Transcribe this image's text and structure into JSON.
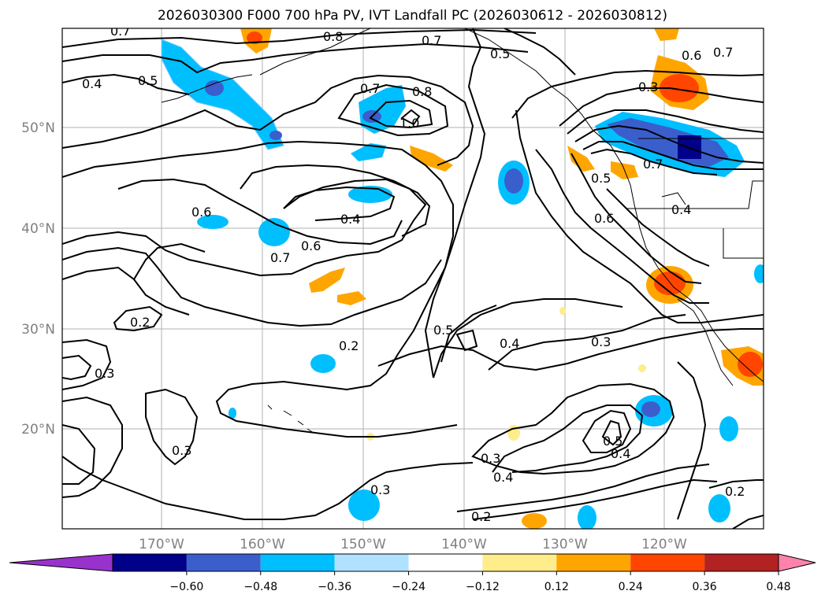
{
  "title": "2026030300 F000 700 hPa PV, IVT Landfall PC (2026030612 - 2026030812)",
  "lat_labels": [
    "50°N",
    "40°N",
    "30°N",
    "20°N"
  ],
  "lon_labels": [
    "170°W",
    "160°W",
    "150°W",
    "140°W",
    "130°W",
    "120°W"
  ],
  "colorbar": {
    "colors": [
      "#9932CC",
      "#00008B",
      "#3A5FCD",
      "#00BFFF",
      "#B0E2FF",
      "#FFFFFF",
      "#FFEC8B",
      "#FFA500",
      "#FF4500",
      "#B22222",
      "#FF82AB"
    ],
    "ticks": [
      "−0.60",
      "−0.48",
      "−0.36",
      "−0.24",
      "−0.12",
      "0.12",
      "0.24",
      "0.36",
      "0.48",
      "0.60"
    ]
  },
  "contour_labels": [
    {
      "text": "0.7",
      "name": "label-0-7-a"
    },
    {
      "text": "0.8",
      "name": "label-0-8-a"
    },
    {
      "text": "0.7",
      "name": "label-0-7-b"
    },
    {
      "text": "0.5",
      "name": "label-0-5-a"
    },
    {
      "text": "0.6",
      "name": "label-0-6-a"
    },
    {
      "text": "0.7",
      "name": "label-0-7-c"
    },
    {
      "text": "0.4",
      "name": "label-0-4-a"
    },
    {
      "text": "0.5",
      "name": "label-0-5-b"
    },
    {
      "text": "0.7",
      "name": "label-0-7-d"
    },
    {
      "text": "0.8",
      "name": "label-0-8-b"
    },
    {
      "text": "1.0",
      "name": "label-1-0"
    },
    {
      "text": "0.3",
      "name": "label-0-3-a"
    },
    {
      "text": "0.7",
      "name": "label-0-7-e"
    },
    {
      "text": "0.5",
      "name": "label-0-5-c"
    },
    {
      "text": "0.6",
      "name": "label-0-6-b"
    },
    {
      "text": "0.4",
      "name": "label-0-4-b"
    },
    {
      "text": "0.6",
      "name": "label-0-6-c"
    },
    {
      "text": "0.4",
      "name": "label-0-4-c"
    },
    {
      "text": "0.6",
      "name": "label-0-6-d"
    },
    {
      "text": "0.7",
      "name": "label-0-7-f"
    },
    {
      "text": "0.2",
      "name": "label-0-2-a"
    },
    {
      "text": "0.2",
      "name": "label-0-2-b"
    },
    {
      "text": "0.5",
      "name": "label-0-5-d"
    },
    {
      "text": "0.4",
      "name": "label-0-4-d"
    },
    {
      "text": "0.3",
      "name": "label-0-3-b"
    },
    {
      "text": "0.3",
      "name": "label-0-3-c"
    },
    {
      "text": "0.3",
      "name": "label-0-3-d"
    },
    {
      "text": "0.3",
      "name": "label-0-3-e"
    },
    {
      "text": "0.3",
      "name": "label-0-3-f"
    },
    {
      "text": "0.4",
      "name": "label-0-4-e"
    },
    {
      "text": "0.5",
      "name": "label-0-5-e"
    },
    {
      "text": "0.4",
      "name": "label-0-4-f"
    },
    {
      "text": "0.2",
      "name": "label-0-2-c"
    },
    {
      "text": "0.2",
      "name": "label-0-2-d"
    }
  ]
}
